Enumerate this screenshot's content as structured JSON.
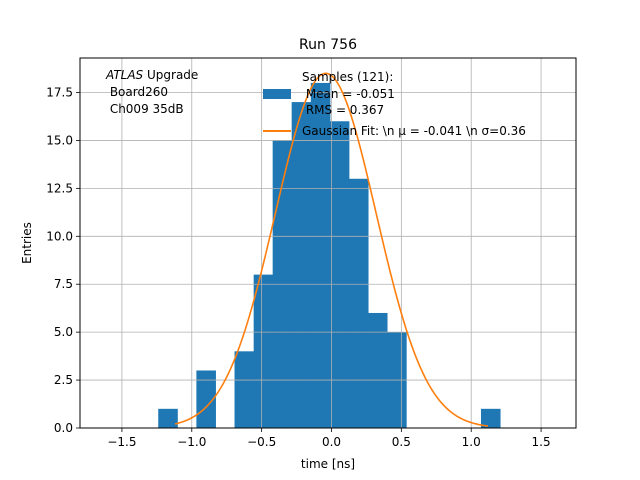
{
  "chart_data": {
    "type": "bar",
    "title": "Run 756",
    "xlabel": "time [ns]",
    "ylabel": "Entries",
    "xlim": [
      -1.8,
      1.75
    ],
    "ylim": [
      0,
      19.3
    ],
    "grid": true,
    "xticks": [
      -1.5,
      -1.0,
      -0.5,
      0.0,
      0.5,
      1.0,
      1.5
    ],
    "xtick_labels": [
      "−1.5",
      "−1.0",
      "−0.5",
      "0.0",
      "0.5",
      "1.0",
      "1.5"
    ],
    "yticks": [
      0,
      2.5,
      5,
      7.5,
      10,
      12.5,
      15,
      17.5
    ],
    "ytick_labels": [
      "0.0",
      "2.5",
      "5.0",
      "7.5",
      "10.0",
      "12.5",
      "15.0",
      "17.5"
    ],
    "bin_width": 0.1364,
    "bin_starts": [
      -1.24,
      -0.967,
      -0.694,
      -0.557,
      -0.421,
      -0.285,
      -0.148,
      -0.012,
      0.125,
      0.261,
      0.398,
      0.534,
      1.07
    ],
    "bin_counts": [
      1,
      3,
      4,
      8,
      15,
      17,
      18,
      16,
      13,
      6,
      5,
      0,
      1
    ],
    "bar_color": "#1f77b4",
    "fit_color": "#ff7f0e",
    "fit": {
      "amplitude": 18.5,
      "mu": -0.041,
      "sigma": 0.36,
      "x_range": [
        -1.12,
        1.12
      ]
    },
    "legend": {
      "histogram_label_lines": [
        "Samples (121):",
        " Mean = -0.051",
        " RMS = 0.367"
      ],
      "fit_label": "Gaussian Fit: \\n μ = -0.041 \\n σ=0.36"
    },
    "annotation": {
      "experiment": "ATLAS",
      "suffix": " Upgrade",
      "lines": [
        " Board260",
        " Ch009 35dB"
      ]
    }
  }
}
